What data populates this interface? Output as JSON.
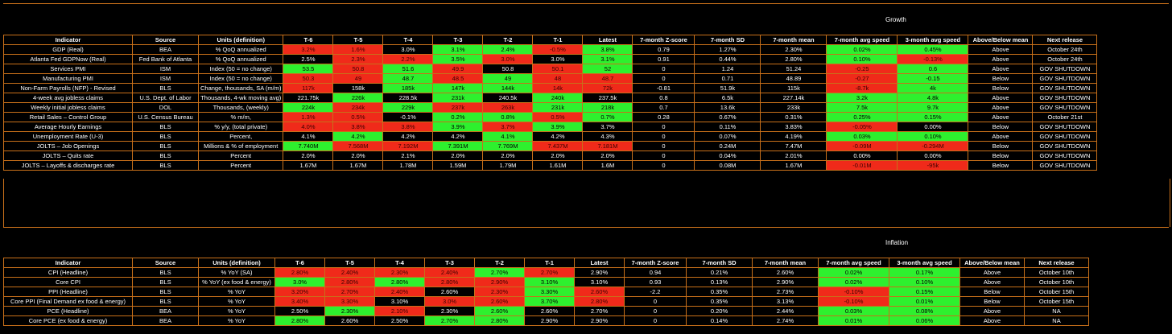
{
  "columns": [
    "Indicator",
    "Source",
    "Units (definition)",
    "T-6",
    "T-5",
    "T-4",
    "T-3",
    "T-2",
    "T-1",
    "Latest",
    "7-month Z-score",
    "7-month SD",
    "7-month mean",
    "7-month avg speed",
    "3-month avg speed",
    "Above/Below mean",
    "Next release"
  ],
  "sections": [
    {
      "title": "Growth",
      "rows": [
        {
          "cells": [
            "GDP (Real)",
            "BEA",
            "% QoQ annualized",
            "3.2%",
            "1.6%",
            "3.0%",
            "3.1%",
            "2.4%",
            "-0.5%",
            "3.8%",
            "0.79",
            "1.27%",
            "2.30%",
            "0.02%",
            "0.45%",
            "Above",
            "October 24th"
          ],
          "colors": [
            "k",
            "k",
            "k",
            "r",
            "r",
            "k",
            "g",
            "g",
            "r",
            "g",
            "k",
            "k",
            "k",
            "g",
            "g",
            "k",
            "k"
          ]
        },
        {
          "cells": [
            "Atlanta Fed GDPNow (Real)",
            "Fed Bank of Atlanta",
            "% QoQ annualized",
            "2.5%",
            "2.3%",
            "2.2%",
            "3.5%",
            "3.0%",
            "3.0%",
            "3.1%",
            "0.91",
            "0.44%",
            "2.80%",
            "0.10%",
            "-0.13%",
            "Above",
            "October 24th"
          ],
          "colors": [
            "k",
            "k",
            "k",
            "k",
            "r",
            "r",
            "g",
            "r",
            "k",
            "g",
            "k",
            "k",
            "k",
            "g",
            "r",
            "k",
            "k"
          ]
        },
        {
          "cells": [
            "Services PMI",
            "ISM",
            "Index (50 = no change)",
            "53.5",
            "50.8",
            "51.6",
            "49.9",
            "50.8",
            "50.1",
            "52",
            "0",
            "1.24",
            "51.24",
            "-0.25",
            "0.6",
            "Above",
            "GOV SHUTDOWN"
          ],
          "colors": [
            "k",
            "k",
            "k",
            "g",
            "r",
            "g",
            "r",
            "k",
            "r",
            "g",
            "k",
            "k",
            "k",
            "r",
            "g",
            "k",
            "k"
          ]
        },
        {
          "cells": [
            "Manufacturing PMI",
            "ISM",
            "Index (50 = no change)",
            "50.3",
            "49",
            "48.7",
            "48.5",
            "49",
            "48",
            "48.7",
            "0",
            "0.71",
            "48.89",
            "-0.27",
            "-0.15",
            "Below",
            "GOV SHUTDOWN"
          ],
          "colors": [
            "k",
            "k",
            "k",
            "r",
            "r",
            "g",
            "r",
            "g",
            "r",
            "r",
            "k",
            "k",
            "k",
            "r",
            "g",
            "k",
            "k"
          ]
        },
        {
          "cells": [
            "Non-Farm Payrolls (NFP) - Revised",
            "BLS",
            "Change, thousands, SA (m/m)",
            "117k",
            "158k",
            "185k",
            "147k",
            "144k",
            "14k",
            "72k",
            "-0.81",
            "51.9k",
            "115k",
            "-8.7k",
            "4k",
            "Below",
            "GOV SHUTDOWN"
          ],
          "colors": [
            "k",
            "k",
            "k",
            "r",
            "k",
            "g",
            "g",
            "g",
            "r",
            "r",
            "k",
            "k",
            "k",
            "r",
            "g",
            "k",
            "k"
          ]
        },
        {
          "cells": [
            "4-week avg jobless claims",
            "U.S. Dept. of Labor",
            "Thousands, 4-wk moving avg)",
            "221.75k",
            "226k",
            "228.5k",
            "231k",
            "240.5k",
            "240k",
            "237.5k",
            "0.8",
            "6.5k",
            "227.14k",
            "3.2k",
            "4.8k",
            "Above",
            "GOV SHUTDOWN"
          ],
          "colors": [
            "k",
            "k",
            "k",
            "k",
            "g",
            "k",
            "g",
            "k",
            "g",
            "k",
            "k",
            "k",
            "k",
            "g",
            "g",
            "k",
            "k"
          ]
        },
        {
          "cells": [
            "Weekly initial jobless claims",
            "DOL",
            "Thousands, (weekly)",
            "224k",
            "234k",
            "229k",
            "237k",
            "263k",
            "231k",
            "218k",
            "0.7",
            "13.6k",
            "233k",
            "7.5k",
            "9.7k",
            "Above",
            "GOV SHUTDOWN"
          ],
          "colors": [
            "k",
            "k",
            "k",
            "g",
            "r",
            "g",
            "r",
            "r",
            "g",
            "g",
            "k",
            "k",
            "k",
            "g",
            "g",
            "k",
            "k"
          ]
        },
        {
          "cells": [
            "Retail Sales – Control Group",
            "U.S. Census Bureau",
            "% m/m,",
            "1.3%",
            "0.5%",
            "-0.1%",
            "0.2%",
            "0.8%",
            "0.5%",
            "0.7%",
            "0.28",
            "0.67%",
            "0.31%",
            "0.25%",
            "0.15%",
            "Above",
            "October 21st"
          ],
          "colors": [
            "k",
            "k",
            "k",
            "r",
            "r",
            "k",
            "g",
            "g",
            "r",
            "g",
            "k",
            "k",
            "k",
            "g",
            "g",
            "k",
            "k"
          ]
        },
        {
          "cells": [
            "Average Hourly Earnings",
            "BLS",
            "% y/y, (total private)",
            "4.0%",
            "3.8%",
            "3.8%",
            "3.9%",
            "3.7%",
            "3.9%",
            "3.7%",
            "0",
            "0.11%",
            "3.83%",
            "-0.05%",
            "0.00%",
            "Below",
            "GOV SHUTDOWN"
          ],
          "colors": [
            "k",
            "k",
            "k",
            "r",
            "r",
            "r",
            "g",
            "r",
            "g",
            "k",
            "k",
            "k",
            "k",
            "r",
            "k",
            "k",
            "k"
          ]
        },
        {
          "cells": [
            "Unemployment Rate (U-3)",
            "BLS",
            "Percent,",
            "4.1%",
            "4.2%",
            "4.2%",
            "4.2%",
            "4.1%",
            "4.2%",
            "4.3%",
            "0",
            "0.07%",
            "4.19%",
            "0.03%",
            "0.10%",
            "Above",
            "GOV SHUTDOWN"
          ],
          "colors": [
            "k",
            "k",
            "k",
            "k",
            "g",
            "k",
            "k",
            "g",
            "k",
            "k",
            "k",
            "k",
            "k",
            "g",
            "g",
            "k",
            "k"
          ]
        },
        {
          "cells": [
            "JOLTS – Job Openings",
            "BLS",
            "Millions & % of employment",
            "7.740M",
            "7.568M",
            "7.192M",
            "7.391M",
            "7.769M",
            "7.437M",
            "7.181M",
            "0",
            "0.24M",
            "7.47M",
            "-0.09M",
            "-0.294M",
            "Below",
            "GOV SHUTDOWN"
          ],
          "colors": [
            "k",
            "k",
            "k",
            "g",
            "r",
            "r",
            "g",
            "g",
            "r",
            "r",
            "k",
            "k",
            "k",
            "r",
            "r",
            "k",
            "k"
          ]
        },
        {
          "cells": [
            "JOLTS – Quits rate",
            "BLS",
            "Percent",
            "2.0%",
            "2.0%",
            "2.1%",
            "2.0%",
            "2.0%",
            "2.0%",
            "2.0%",
            "0",
            "0.04%",
            "2.01%",
            "0.00%",
            "0.00%",
            "Below",
            "GOV SHUTDOWN"
          ],
          "colors": [
            "k",
            "k",
            "k",
            "k",
            "k",
            "k",
            "k",
            "k",
            "k",
            "k",
            "k",
            "k",
            "k",
            "k",
            "k",
            "k",
            "k"
          ]
        },
        {
          "cells": [
            "JOLTS – Layoffs & discharges rate",
            "BLS",
            "Percent",
            "1.67M",
            "1.67M",
            "1.78M",
            "1.59M",
            "1.79M",
            "1.61M",
            "1.6M",
            "0",
            "0.08M",
            "1.67M",
            "-0.01M",
            "-95k",
            "Below",
            "GOV SHUTDOWN"
          ],
          "colors": [
            "k",
            "k",
            "k",
            "k",
            "k",
            "k",
            "k",
            "k",
            "k",
            "k",
            "k",
            "k",
            "k",
            "r",
            "r",
            "k",
            "k"
          ]
        }
      ]
    },
    {
      "title": "Inflation",
      "rows": [
        {
          "cells": [
            "CPI (Headline)",
            "BLS",
            "% YoY (SA)",
            "2.80%",
            "2.40%",
            "2.30%",
            "2.40%",
            "2.70%",
            "2.70%",
            "2.90%",
            "0.94",
            "0.21%",
            "2.60%",
            "0.02%",
            "0.17%",
            "Above",
            "October 10th"
          ],
          "colors": [
            "k",
            "k",
            "k",
            "r",
            "r",
            "r",
            "r",
            "g",
            "r",
            "k",
            "k",
            "k",
            "k",
            "g",
            "g",
            "k",
            "k"
          ]
        },
        {
          "cells": [
            "Core CPI",
            "BLS",
            "% YoY (ex food & energy)",
            "3.0%",
            "2.80%",
            "2.80%",
            "2.80%",
            "2.90%",
            "3.10%",
            "3.10%",
            "0.93",
            "0.13%",
            "2.90%",
            "0.02%",
            "0.10%",
            "Above",
            "October 10th"
          ],
          "colors": [
            "k",
            "k",
            "k",
            "g",
            "r",
            "g",
            "r",
            "r",
            "g",
            "k",
            "k",
            "k",
            "k",
            "g",
            "g",
            "k",
            "k"
          ]
        },
        {
          "cells": [
            "PPI (Headline)",
            "BLS",
            "% YoY",
            "3.20%",
            "2.70%",
            "2.40%",
            "2.60%",
            "2.30%",
            "3.30%",
            "2.60%",
            "-2.2",
            "0.35%",
            "2.73%",
            "-0.10%",
            "0.15%",
            "Below",
            "October 15th"
          ],
          "colors": [
            "k",
            "k",
            "k",
            "r",
            "r",
            "r",
            "k",
            "r",
            "g",
            "r",
            "k",
            "k",
            "k",
            "r",
            "g",
            "k",
            "k"
          ]
        },
        {
          "cells": [
            "Core PPI (Final Demand ex food & energy)",
            "BLS",
            "% YoY",
            "3.40%",
            "3.30%",
            "3.10%",
            "3.0%",
            "2.60%",
            "3.70%",
            "2.80%",
            "0",
            "0.35%",
            "3.13%",
            "-0.10%",
            "0.01%",
            "Below",
            "October 15th"
          ],
          "colors": [
            "k",
            "k",
            "k",
            "r",
            "r",
            "k",
            "r",
            "r",
            "g",
            "r",
            "k",
            "k",
            "k",
            "r",
            "g",
            "k",
            "k"
          ]
        },
        {
          "cells": [
            "PCE (Headline)",
            "BEA",
            "% YoY",
            "2.50%",
            "2.30%",
            "2.10%",
            "2.30%",
            "2.60%",
            "2.60%",
            "2.70%",
            "0",
            "0.20%",
            "2.44%",
            "0.03%",
            "0.08%",
            "Above",
            "NA"
          ],
          "colors": [
            "k",
            "k",
            "k",
            "k",
            "g",
            "r",
            "k",
            "g",
            "k",
            "k",
            "k",
            "k",
            "k",
            "g",
            "g",
            "k",
            "k"
          ]
        },
        {
          "cells": [
            "Core PCE (ex food & energy)",
            "BEA",
            "% YoY",
            "2.80%",
            "2.60%",
            "2.50%",
            "2.70%",
            "2.80%",
            "2.90%",
            "2.90%",
            "0",
            "0.14%",
            "2.74%",
            "0.01%",
            "0.06%",
            "Above",
            "NA"
          ],
          "colors": [
            "k",
            "k",
            "k",
            "g",
            "k",
            "k",
            "g",
            "g",
            "k",
            "k",
            "k",
            "k",
            "k",
            "g",
            "g",
            "k",
            "k"
          ]
        }
      ]
    }
  ]
}
